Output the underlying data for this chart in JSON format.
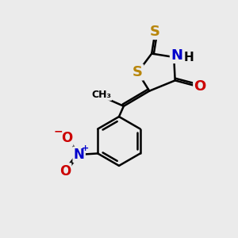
{
  "bg_color": "#ebebeb",
  "bond_color": "#000000",
  "bond_width": 1.8,
  "atom_colors": {
    "S": "#b8860b",
    "N": "#0000cc",
    "O": "#cc0000",
    "C": "#000000"
  },
  "font_size": 12,
  "fig_size": [
    3.0,
    3.0
  ],
  "dpi": 100
}
